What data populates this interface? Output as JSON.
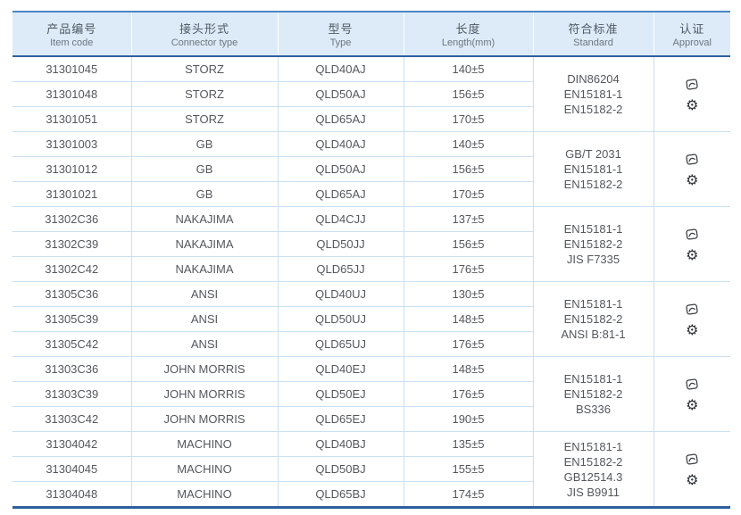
{
  "table": {
    "columns": [
      {
        "zh": "产品编号",
        "en": "Item code"
      },
      {
        "zh": "接头形式",
        "en": "Connector type"
      },
      {
        "zh": "型号",
        "en": "Type"
      },
      {
        "zh": "长度",
        "en": "Length(mm)"
      },
      {
        "zh": "符合标准",
        "en": "Standard"
      },
      {
        "zh": "认证",
        "en": "Approval"
      }
    ],
    "groups": [
      {
        "rows": [
          {
            "code": "31301045",
            "connector": "STORZ",
            "type": "QLD40AJ",
            "length": "140±5"
          },
          {
            "code": "31301048",
            "connector": "STORZ",
            "type": "QLD50AJ",
            "length": "156±5"
          },
          {
            "code": "31301051",
            "connector": "STORZ",
            "type": "QLD65AJ",
            "length": "170±5"
          }
        ],
        "standards": [
          "DIN86204",
          "EN15181-1",
          "EN15182-2"
        ],
        "approvals": [
          "certificate-stamp-icon",
          "wheelmark-gear-icon"
        ]
      },
      {
        "rows": [
          {
            "code": "31301003",
            "connector": "GB",
            "type": "QLD40AJ",
            "length": "140±5"
          },
          {
            "code": "31301012",
            "connector": "GB",
            "type": "QLD50AJ",
            "length": "156±5"
          },
          {
            "code": "31301021",
            "connector": "GB",
            "type": "QLD65AJ",
            "length": "170±5"
          }
        ],
        "standards": [
          "GB/T 2031",
          "EN15181-1",
          "EN15182-2"
        ],
        "approvals": [
          "certificate-stamp-icon",
          "wheelmark-gear-icon"
        ]
      },
      {
        "rows": [
          {
            "code": "31302C36",
            "connector": "NAKAJIMA",
            "type": "QLD4CJJ",
            "length": "137±5"
          },
          {
            "code": "31302C39",
            "connector": "NAKAJIMA",
            "type": "QLD50JJ",
            "length": "156±5"
          },
          {
            "code": "31302C42",
            "connector": "NAKAJIMA",
            "type": "QLD65JJ",
            "length": "176±5"
          }
        ],
        "standards": [
          "EN15181-1",
          "EN15182-2",
          "JIS F7335"
        ],
        "approvals": [
          "certificate-stamp-icon",
          "wheelmark-gear-icon"
        ]
      },
      {
        "rows": [
          {
            "code": "31305C36",
            "connector": "ANSI",
            "type": "QLD40UJ",
            "length": "130±5"
          },
          {
            "code": "31305C39",
            "connector": "ANSI",
            "type": "QLD50UJ",
            "length": "148±5"
          },
          {
            "code": "31305C42",
            "connector": "ANSI",
            "type": "QLD65UJ",
            "length": "176±5"
          }
        ],
        "standards": [
          "EN15181-1",
          "EN15182-2",
          "ANSI B:81-1"
        ],
        "approvals": [
          "certificate-stamp-icon",
          "wheelmark-gear-icon"
        ]
      },
      {
        "rows": [
          {
            "code": "31303C36",
            "connector": "JOHN MORRIS",
            "type": "QLD40EJ",
            "length": "148±5"
          },
          {
            "code": "31303C39",
            "connector": "JOHN MORRIS",
            "type": "QLD50EJ",
            "length": "176±5"
          },
          {
            "code": "31303C42",
            "connector": "JOHN MORRIS",
            "type": "QLD65EJ",
            "length": "190±5"
          }
        ],
        "standards": [
          "EN15181-1",
          "EN15182-2",
          "BS336"
        ],
        "approvals": [
          "certificate-stamp-icon",
          "wheelmark-gear-icon"
        ]
      },
      {
        "rows": [
          {
            "code": "31304042",
            "connector": "MACHINO",
            "type": "QLD40BJ",
            "length": "135±5"
          },
          {
            "code": "31304045",
            "connector": "MACHINO",
            "type": "QLD50BJ",
            "length": "155±5"
          },
          {
            "code": "31304048",
            "connector": "MACHINO",
            "type": "QLD65BJ",
            "length": "174±5"
          }
        ],
        "standards": [
          "EN15181-1",
          "EN15182-2",
          "GB12514.3",
          "JIS B9911"
        ],
        "approvals": [
          "certificate-stamp-icon",
          "wheelmark-gear-icon"
        ]
      }
    ]
  },
  "colors": {
    "top_border": "#4a86c8",
    "header_bg": "#dcebf7",
    "header_rule": "#2e5f9e",
    "row_line": "#c9e0f2",
    "text": "#54585c",
    "bottom_border": "#2e5f9e"
  }
}
